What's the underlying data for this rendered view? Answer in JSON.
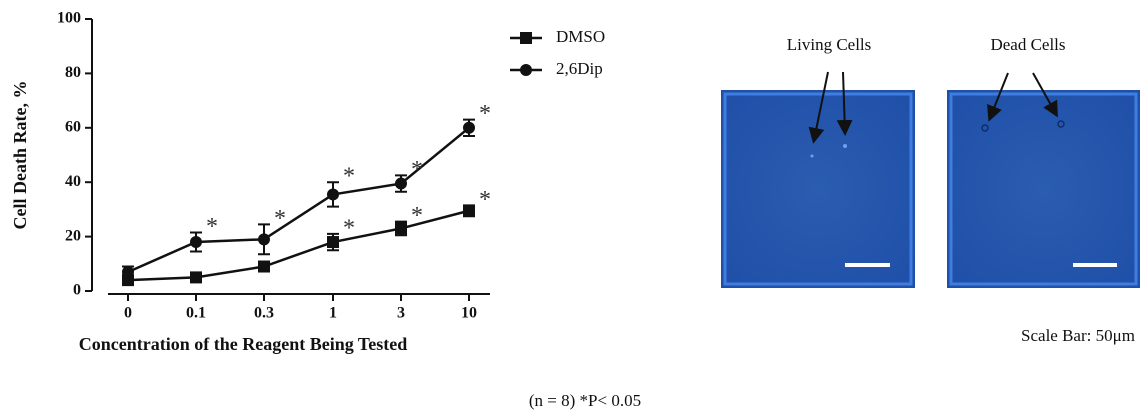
{
  "chart_data": {
    "type": "line",
    "xlabel": "Concentration of the Reagent Being Tested",
    "ylabel": "Cell Death Rate, %",
    "categories": [
      "0",
      "0.1",
      "0.3",
      "1",
      "3",
      "10"
    ],
    "ylim": [
      0,
      100
    ],
    "yticks": [
      0,
      20,
      40,
      60,
      80,
      100
    ],
    "series": [
      {
        "name": "DMSO",
        "color": "#111111",
        "marker": "square",
        "values": [
          4,
          5,
          9,
          18,
          23,
          29.5
        ],
        "errors": [
          1,
          1,
          1,
          3,
          2.5,
          2
        ],
        "significance": [
          null,
          null,
          null,
          "*",
          "*",
          "*"
        ]
      },
      {
        "name": "2,6Dip",
        "color": "#111111",
        "marker": "circle",
        "values": [
          7,
          18,
          19,
          35.5,
          39.5,
          60
        ],
        "errors": [
          2,
          3.5,
          5.5,
          4.5,
          3,
          3
        ],
        "significance": [
          null,
          "*",
          "*",
          "*",
          "*",
          "*"
        ]
      }
    ]
  },
  "images": {
    "living_label": "Living Cells",
    "dead_label": "Dead Cells",
    "scale_bar": "Scale Bar: 50μm"
  },
  "footnote": "(n = 8)  *P< 0.05"
}
